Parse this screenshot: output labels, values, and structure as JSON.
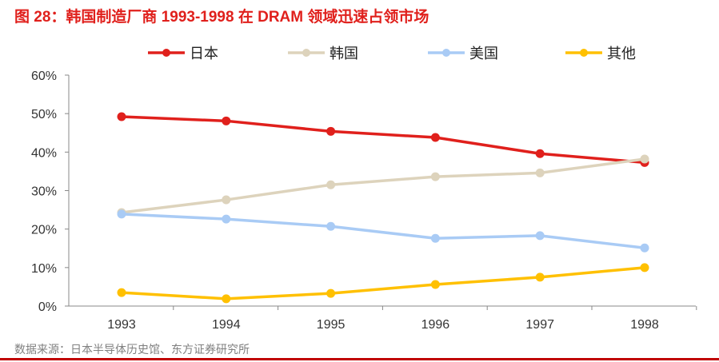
{
  "title": "图 28：韩国制造厂商 1993-1998 在 DRAM 领域迅速占领市场",
  "source": "数据来源：日本半导体历史馆、东方证券研究所",
  "chart_data": {
    "type": "line",
    "categories": [
      "1993",
      "1994",
      "1995",
      "1996",
      "1997",
      "1998"
    ],
    "ylim": [
      0,
      60
    ],
    "yticks": [
      "0%",
      "10%",
      "20%",
      "30%",
      "40%",
      "50%",
      "60%"
    ],
    "grid": false,
    "legend": "top",
    "series": [
      {
        "name": "日本",
        "color": "#e0201c",
        "values": [
          49.2,
          48.1,
          45.4,
          43.8,
          39.6,
          37.3
        ]
      },
      {
        "name": "韩国",
        "color": "#ddd3bc",
        "values": [
          24.3,
          27.6,
          31.5,
          33.6,
          34.6,
          38.2
        ]
      },
      {
        "name": "美国",
        "color": "#a9cbf5",
        "values": [
          23.9,
          22.6,
          20.7,
          17.6,
          18.3,
          15.1
        ]
      },
      {
        "name": "其他",
        "color": "#ffc000",
        "values": [
          3.5,
          1.9,
          3.3,
          5.6,
          7.5,
          10.0
        ]
      }
    ]
  }
}
